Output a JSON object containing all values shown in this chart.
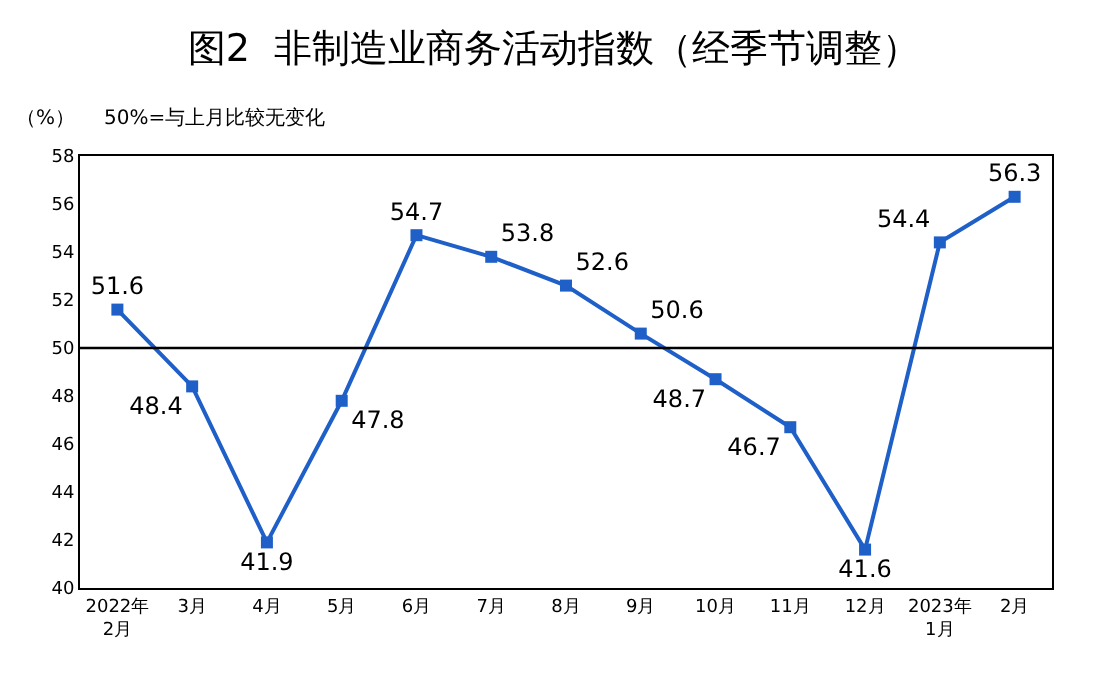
{
  "chart_data": {
    "type": "line",
    "title": "图2  非制造业商务活动指数（经季节调整）",
    "annotations": [
      "（%）",
      "50%=与上月比较无变化"
    ],
    "categories": [
      "2022年\n2月",
      "3月",
      "4月",
      "5月",
      "6月",
      "7月",
      "8月",
      "9月",
      "10月",
      "11月",
      "12月",
      "2023年\n1月",
      "2月"
    ],
    "series": [
      {
        "color": "#1f5fc8",
        "values": [
          51.6,
          48.4,
          41.9,
          47.8,
          54.7,
          53.8,
          52.6,
          50.6,
          48.7,
          46.7,
          41.6,
          54.4,
          56.3
        ]
      }
    ],
    "ylim": [
      40,
      58
    ],
    "yticks": [
      40,
      42,
      44,
      46,
      48,
      50,
      52,
      54,
      56,
      58
    ],
    "ref_lines": [
      {
        "axis": "y",
        "value": 50,
        "color": "#000000"
      }
    ],
    "legend": false,
    "marker": "square",
    "line_style": "solid",
    "data_labels": true
  }
}
